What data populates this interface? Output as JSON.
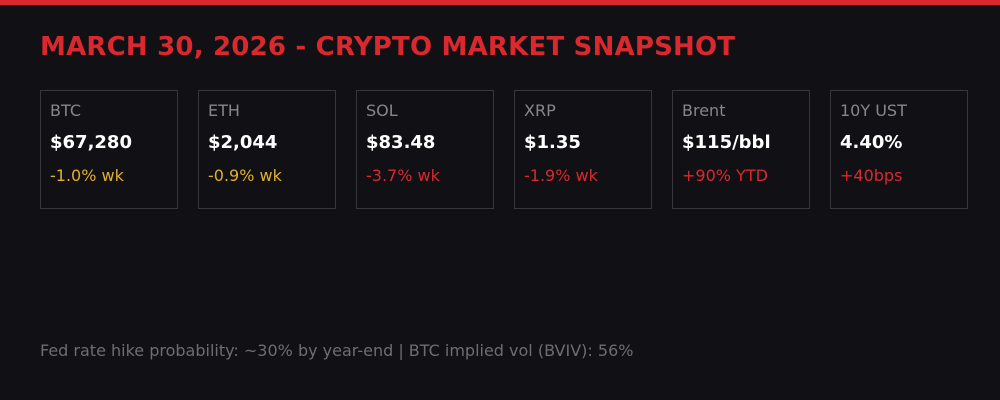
{
  "header": {
    "title": "MARCH 30, 2026 - CRYPTO MARKET SNAPSHOT",
    "accent_color": "#d9292e"
  },
  "cards": [
    {
      "label": "BTC",
      "value": "$67,280",
      "change": "-1.0% wk",
      "change_color": "#e0b02a"
    },
    {
      "label": "ETH",
      "value": "$2,044",
      "change": "-0.9% wk",
      "change_color": "#e0b02a"
    },
    {
      "label": "SOL",
      "value": "$83.48",
      "change": "-3.7% wk",
      "change_color": "#d9292e"
    },
    {
      "label": "XRP",
      "value": "$1.35",
      "change": "-1.9% wk",
      "change_color": "#d9292e"
    },
    {
      "label": "Brent",
      "value": "$115/bbl",
      "change": "+90% YTD",
      "change_color": "#d9292e"
    },
    {
      "label": "10Y UST",
      "value": "4.40%",
      "change": "+40bps",
      "change_color": "#d9292e"
    }
  ],
  "footer": {
    "text": "Fed rate hike probability: ~30% by year-end | BTC implied vol (BVIV): 56%"
  }
}
